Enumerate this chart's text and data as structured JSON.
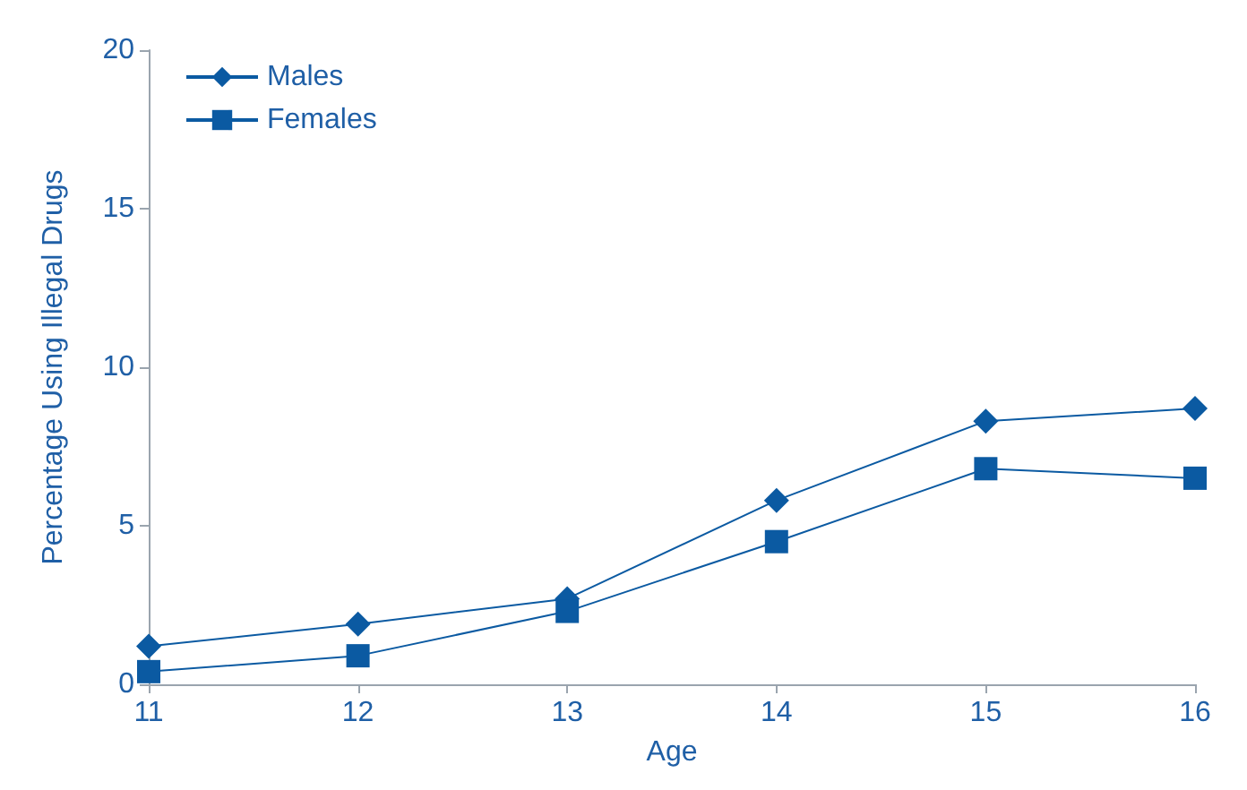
{
  "chart_data": {
    "type": "line",
    "xlabel": "Age",
    "ylabel": "Percentage Using Illegal Drugs",
    "x": [
      11,
      12,
      13,
      14,
      15,
      16
    ],
    "series": [
      {
        "name": "Males",
        "color": "#0b5aa2",
        "marker": "diamond",
        "values": [
          1.2,
          1.9,
          2.7,
          5.8,
          8.3,
          8.7
        ]
      },
      {
        "name": "Females",
        "color": "#0b5aa2",
        "marker": "square",
        "values": [
          0.4,
          0.9,
          2.3,
          4.5,
          6.8,
          6.5
        ]
      }
    ],
    "xlim": [
      11,
      16
    ],
    "xticks": [
      11,
      12,
      13,
      14,
      15,
      16
    ],
    "ylim": [
      0,
      20
    ],
    "yticks": [
      0,
      5,
      10,
      15,
      20
    ],
    "grid": false,
    "legend": "top left",
    "line_style": "solid"
  }
}
